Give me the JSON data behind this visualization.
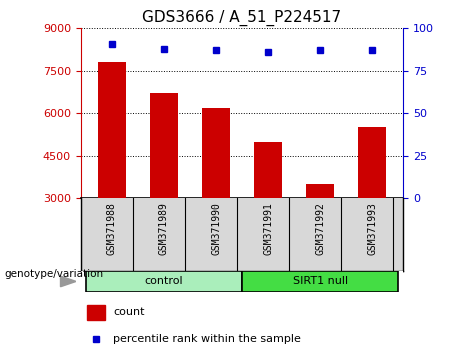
{
  "title": "GDS3666 / A_51_P224517",
  "samples": [
    "GSM371988",
    "GSM371989",
    "GSM371990",
    "GSM371991",
    "GSM371992",
    "GSM371993"
  ],
  "counts": [
    7800,
    6700,
    6200,
    5000,
    3500,
    5500
  ],
  "percentiles": [
    91,
    88,
    87,
    86,
    87,
    87
  ],
  "ylim_left": [
    3000,
    9000
  ],
  "ylim_right": [
    0,
    100
  ],
  "yticks_left": [
    3000,
    4500,
    6000,
    7500,
    9000
  ],
  "yticks_right": [
    0,
    25,
    50,
    75,
    100
  ],
  "bar_color": "#cc0000",
  "point_color": "#0000cc",
  "groups": [
    {
      "label": "control",
      "indices": [
        0,
        1,
        2
      ],
      "color": "#aaeebb"
    },
    {
      "label": "SIRT1 null",
      "indices": [
        3,
        4,
        5
      ],
      "color": "#44dd44"
    }
  ],
  "group_label_prefix": "genotype/variation",
  "legend_count_label": "count",
  "legend_percentile_label": "percentile rank within the sample",
  "title_fontsize": 11,
  "axis_label_color_left": "#cc0000",
  "axis_label_color_right": "#0000cc",
  "tick_fontsize": 8,
  "sample_fontsize": 7,
  "group_fontsize": 8,
  "legend_fontsize": 8
}
